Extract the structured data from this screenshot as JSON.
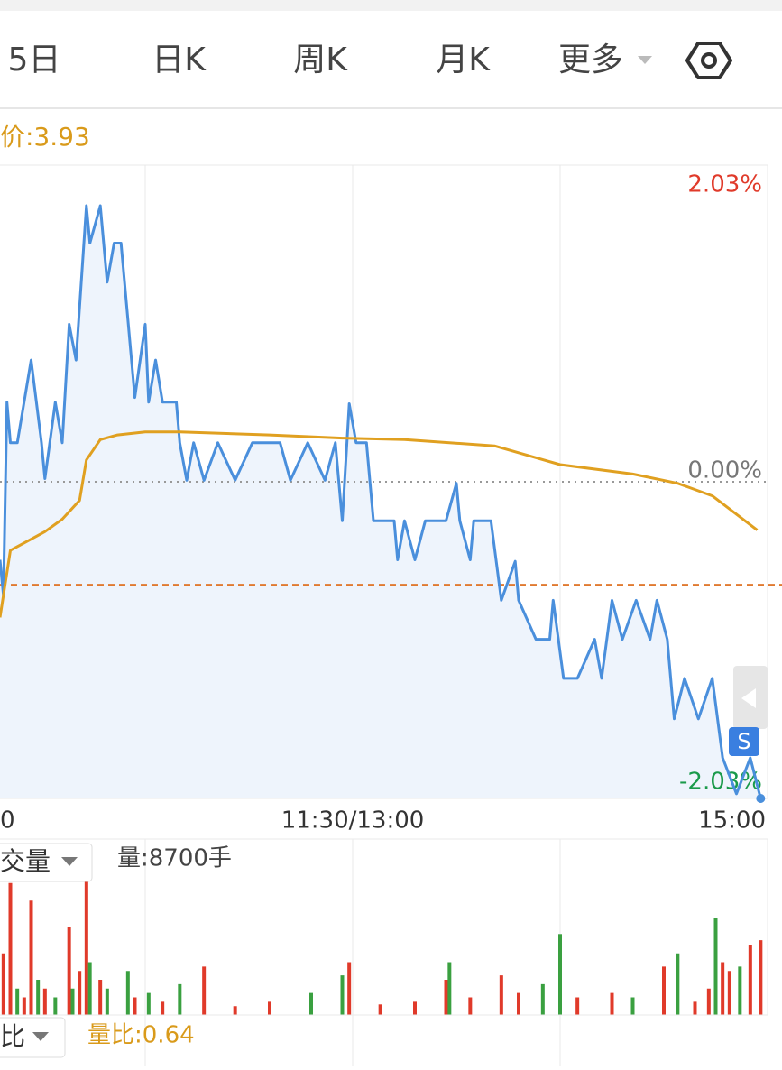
{
  "tabs": [
    "5日",
    "日K",
    "周K",
    "月K",
    "更多"
  ],
  "avg_price_label": "价:3.93",
  "volume_selector": "交量",
  "volume_label": "量:8700手",
  "ratio_selector": "比",
  "ratio_label": "量比:0.64",
  "badge": "S",
  "chart_data": {
    "type": "line",
    "xlim": [
      0,
      240
    ],
    "xticks": [
      {
        "value": 0,
        "label": "0"
      },
      {
        "value": 120,
        "label": "11:30/13:00"
      },
      {
        "value": 240,
        "label": "15:00"
      }
    ],
    "xgrid": [
      60,
      120,
      180
    ],
    "ylim": [
      -2.03,
      2.03
    ],
    "yticks": [
      {
        "value": 2.03,
        "label": "2.03%"
      },
      {
        "value": 0,
        "label": "0.00%"
      },
      {
        "value": -2.03,
        "label": "-2.03%"
      }
    ],
    "ytick_colors": [
      "#e03a2a",
      "#777777",
      "#1a9a4a"
    ],
    "reference_line": -0.66,
    "series": [
      {
        "color": "#4a8fdc",
        "x": [
          18,
          19,
          20,
          21,
          23,
          27,
          30,
          31,
          34,
          36,
          38,
          40,
          43,
          44,
          47,
          49,
          51,
          53,
          55,
          57,
          60,
          61,
          63,
          65,
          69,
          70,
          72,
          74,
          77,
          81,
          86,
          91,
          99,
          102,
          107,
          112,
          115,
          117,
          119,
          121,
          124,
          126,
          132,
          133,
          135,
          138,
          141,
          147,
          150,
          151,
          154,
          155,
          160,
          163,
          167,
          168,
          173,
          177,
          178,
          181,
          185,
          190,
          192,
          195,
          198,
          202,
          206,
          208,
          211,
          213,
          216,
          220,
          224,
          227,
          231,
          235,
          238
        ],
        "values": [
          -0.5,
          -0.73,
          0.51,
          0.25,
          0.25,
          0.78,
          0.25,
          0.02,
          0.51,
          0.25,
          1.01,
          0.78,
          1.77,
          1.53,
          1.77,
          1.28,
          1.53,
          1.53,
          1.04,
          0.54,
          1.01,
          0.51,
          0.78,
          0.51,
          0.51,
          0.25,
          0.01,
          0.25,
          0.01,
          0.25,
          0.01,
          0.25,
          0.25,
          0.01,
          0.25,
          0.01,
          0.25,
          -0.25,
          0.5,
          0.25,
          0.25,
          -0.25,
          -0.25,
          -0.5,
          -0.25,
          -0.5,
          -0.25,
          -0.25,
          -0.01,
          -0.25,
          -0.5,
          -0.25,
          -0.25,
          -0.76,
          -0.51,
          -0.76,
          -1.01,
          -1.01,
          -0.76,
          -1.26,
          -1.26,
          -1.01,
          -1.26,
          -0.76,
          -1.01,
          -0.76,
          -1.01,
          -0.76,
          -1.01,
          -1.52,
          -1.26,
          -1.52,
          -1.26,
          -1.77,
          -2.0,
          -1.77,
          -2.03
        ]
      },
      {
        "color": "#e0a020",
        "x": [
          18,
          21,
          26,
          31,
          36,
          41,
          43,
          47,
          52,
          60,
          70,
          96,
          117,
          135,
          161,
          180,
          201,
          214,
          224,
          237
        ],
        "values": [
          -0.87,
          -0.44,
          -0.38,
          -0.32,
          -0.24,
          -0.12,
          0.14,
          0.27,
          0.3,
          0.32,
          0.32,
          0.3,
          0.28,
          0.27,
          0.23,
          0.11,
          0.05,
          -0.01,
          -0.09,
          -0.31
        ]
      }
    ],
    "volume": {
      "ylim": [
        0,
        200
      ],
      "x": [
        19,
        21,
        23,
        25,
        27,
        29,
        31,
        34,
        38,
        39,
        41,
        43,
        44,
        47,
        49,
        55,
        57,
        61,
        65,
        70,
        77,
        86,
        96,
        108,
        117,
        119,
        128,
        138,
        147,
        148,
        154,
        163,
        168,
        175,
        180,
        185,
        195,
        201,
        210,
        214,
        219,
        223,
        225,
        227,
        229,
        232,
        235,
        238
      ],
      "values": [
        70,
        150,
        30,
        20,
        130,
        40,
        30,
        20,
        100,
        30,
        50,
        195,
        60,
        40,
        30,
        50,
        20,
        25,
        15,
        35,
        55,
        10,
        15,
        25,
        45,
        60,
        12,
        15,
        40,
        60,
        20,
        45,
        25,
        35,
        92,
        20,
        25,
        20,
        55,
        70,
        15,
        30,
        110,
        60,
        50,
        55,
        80,
        85
      ],
      "colors": [
        "#e03a2a",
        "#e03a2a",
        "#3aa040",
        "#e03a2a",
        "#e03a2a",
        "#3aa040",
        "#e03a2a",
        "#3aa040",
        "#e03a2a",
        "#3aa040",
        "#e03a2a",
        "#e03a2a",
        "#3aa040",
        "#e03a2a",
        "#3aa040",
        "#3aa040",
        "#e03a2a",
        "#3aa040",
        "#e03a2a",
        "#3aa040",
        "#e03a2a",
        "#e03a2a",
        "#e03a2a",
        "#3aa040",
        "#3aa040",
        "#e03a2a",
        "#e03a2a",
        "#e03a2a",
        "#e03a2a",
        "#3aa040",
        "#e03a2a",
        "#e03a2a",
        "#e03a2a",
        "#3aa040",
        "#3aa040",
        "#e03a2a",
        "#e03a2a",
        "#3aa040",
        "#e03a2a",
        "#3aa040",
        "#e03a2a",
        "#e03a2a",
        "#3aa040",
        "#e03a2a",
        "#e03a2a",
        "#3aa040",
        "#e03a2a",
        "#e03a2a"
      ]
    }
  }
}
